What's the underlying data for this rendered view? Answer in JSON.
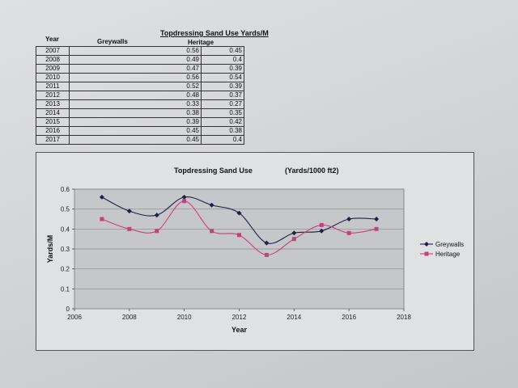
{
  "table": {
    "title": "Topdressing Sand Use Yards/M",
    "headers": {
      "year": "Year",
      "greywalls": "Greywalls",
      "heritage": "Heritage"
    },
    "rows": [
      {
        "year": "2007",
        "greywalls": "0.56",
        "heritage": "0.45"
      },
      {
        "year": "2008",
        "greywalls": "0.49",
        "heritage": "0.4"
      },
      {
        "year": "2009",
        "greywalls": "0.47",
        "heritage": "0.39"
      },
      {
        "year": "2010",
        "greywalls": "0.56",
        "heritage": "0.54"
      },
      {
        "year": "2011",
        "greywalls": "0.52",
        "heritage": "0.39"
      },
      {
        "year": "2012",
        "greywalls": "0.48",
        "heritage": "0.37"
      },
      {
        "year": "2013",
        "greywalls": "0.33",
        "heritage": "0.27"
      },
      {
        "year": "2014",
        "greywalls": "0.38",
        "heritage": "0.35"
      },
      {
        "year": "2015",
        "greywalls": "0.39",
        "heritage": "0.42"
      },
      {
        "year": "2016",
        "greywalls": "0.45",
        "heritage": "0.38"
      },
      {
        "year": "2017",
        "greywalls": "0.45",
        "heritage": "0.4"
      }
    ]
  },
  "chart_data": {
    "type": "line",
    "title": "Topdressing Sand Use",
    "subtitle": "(Yards/1000 ft2)",
    "xlabel": "Year",
    "ylabel": "Yards/M",
    "xlim": [
      2006,
      2018
    ],
    "ylim": [
      0,
      0.6
    ],
    "xticks": [
      "2006",
      "2008",
      "2010",
      "2012",
      "2014",
      "2016",
      "2018"
    ],
    "yticks": [
      "0",
      "0.1",
      "0.2",
      "0.3",
      "0.4",
      "0.5",
      "0.6"
    ],
    "grid": true,
    "legend": "right",
    "x": [
      2007,
      2008,
      2009,
      2010,
      2011,
      2012,
      2013,
      2014,
      2015,
      2016,
      2017
    ],
    "series": [
      {
        "name": "Greywalls",
        "color": "#1c2340",
        "marker": "diamond",
        "values": [
          0.56,
          0.49,
          0.47,
          0.56,
          0.52,
          0.48,
          0.33,
          0.38,
          0.39,
          0.45,
          0.45
        ]
      },
      {
        "name": "Heritage",
        "color": "#c8407a",
        "marker": "square",
        "values": [
          0.45,
          0.4,
          0.39,
          0.54,
          0.39,
          0.37,
          0.27,
          0.35,
          0.42,
          0.38,
          0.4
        ]
      }
    ]
  }
}
